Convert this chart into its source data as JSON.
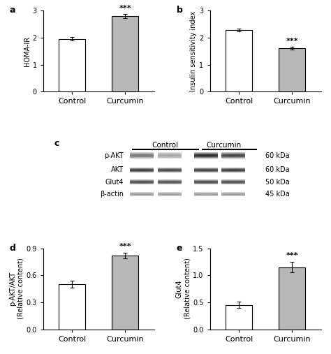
{
  "panel_a": {
    "label": "a",
    "categories": [
      "Control",
      "Curcumin"
    ],
    "values": [
      1.95,
      2.8
    ],
    "errors": [
      0.06,
      0.07
    ],
    "ylabel": "HOMA-IR",
    "ylim": [
      0,
      3
    ],
    "yticks": [
      0,
      1,
      2,
      3
    ],
    "bar_colors": [
      "#ffffff",
      "#b8b8b8"
    ],
    "sig_label": "***",
    "sig_bar_index": 1
  },
  "panel_b": {
    "label": "b",
    "categories": [
      "Control",
      "Curcumin"
    ],
    "values": [
      2.28,
      1.6
    ],
    "errors": [
      0.06,
      0.05
    ],
    "ylabel": "Insulin sensitivity index",
    "ylim": [
      0,
      3
    ],
    "yticks": [
      0,
      1,
      2,
      3
    ],
    "bar_colors": [
      "#ffffff",
      "#b8b8b8"
    ],
    "sig_label": "***",
    "sig_bar_index": 1
  },
  "panel_d": {
    "label": "d",
    "categories": [
      "Control",
      "Curcumin"
    ],
    "values": [
      0.5,
      0.82
    ],
    "errors": [
      0.04,
      0.03
    ],
    "ylabel": "p-AKT/AKT\n(Relative content)",
    "ylim": [
      0,
      0.9
    ],
    "yticks": [
      0.0,
      0.3,
      0.6,
      0.9
    ],
    "ytick_labels": [
      "0.0",
      "0.3",
      "0.6",
      "0.9"
    ],
    "bar_colors": [
      "#ffffff",
      "#b8b8b8"
    ],
    "sig_label": "***",
    "sig_bar_index": 1
  },
  "panel_e": {
    "label": "e",
    "categories": [
      "Control",
      "Curcumin"
    ],
    "values": [
      0.45,
      1.15
    ],
    "errors": [
      0.06,
      0.1
    ],
    "ylabel": "Glut4\n(Relative content)",
    "ylim": [
      0,
      1.5
    ],
    "yticks": [
      0.0,
      0.5,
      1.0,
      1.5
    ],
    "ytick_labels": [
      "0.0",
      "0.5",
      "1.0",
      "1.5"
    ],
    "bar_colors": [
      "#ffffff",
      "#b8b8b8"
    ],
    "sig_label": "***",
    "sig_bar_index": 1
  },
  "panel_c_label": "c",
  "panel_c_proteins": [
    "p-AKT",
    "AKT",
    "Glut4",
    "β-actin"
  ],
  "panel_c_kda": [
    "60 kDa",
    "60 kDa",
    "50 kDa",
    "45 kDa"
  ],
  "edge_color": "#000000",
  "bar_width": 0.5,
  "fontsize_label": 7,
  "fontsize_tick": 7,
  "fontsize_panel": 9,
  "fontsize_sig": 8,
  "background_color": "#ffffff"
}
